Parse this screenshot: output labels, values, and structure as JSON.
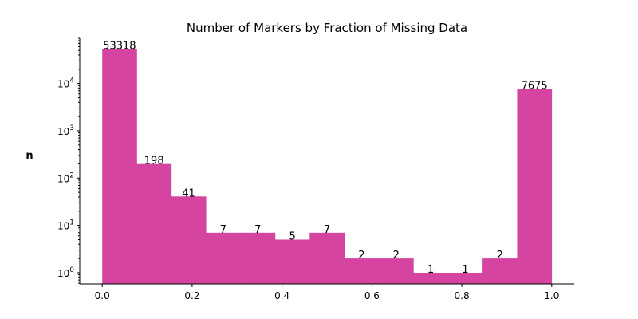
{
  "chart_data": {
    "type": "bar",
    "title": "Number of Markers by Fraction of Missing Data",
    "xlabel": "",
    "ylabel": "n",
    "yscale": "log",
    "xlim": [
      -0.05,
      1.05
    ],
    "ylim": [
      0.58,
      90000
    ],
    "grid": false,
    "bar_color": "#d444a0",
    "bins": [
      {
        "x0": 0.0,
        "x1": 0.0769,
        "value": 53318,
        "label": "53318"
      },
      {
        "x0": 0.0769,
        "x1": 0.1538,
        "value": 198,
        "label": "198"
      },
      {
        "x0": 0.1538,
        "x1": 0.2308,
        "value": 41,
        "label": "41"
      },
      {
        "x0": 0.2308,
        "x1": 0.3077,
        "value": 7,
        "label": "7"
      },
      {
        "x0": 0.3077,
        "x1": 0.3846,
        "value": 7,
        "label": "7"
      },
      {
        "x0": 0.3846,
        "x1": 0.4615,
        "value": 5,
        "label": "5"
      },
      {
        "x0": 0.4615,
        "x1": 0.5385,
        "value": 7,
        "label": "7"
      },
      {
        "x0": 0.5385,
        "x1": 0.6154,
        "value": 2,
        "label": "2"
      },
      {
        "x0": 0.6154,
        "x1": 0.6923,
        "value": 2,
        "label": "2"
      },
      {
        "x0": 0.6923,
        "x1": 0.7692,
        "value": 1,
        "label": "1"
      },
      {
        "x0": 0.7692,
        "x1": 0.8462,
        "value": 1,
        "label": "1"
      },
      {
        "x0": 0.8462,
        "x1": 0.9231,
        "value": 2,
        "label": "2"
      },
      {
        "x0": 0.9231,
        "x1": 1.0,
        "value": 7675,
        "label": "7675"
      }
    ],
    "x_ticks": [
      {
        "value": 0.0,
        "label": "0.0"
      },
      {
        "value": 0.2,
        "label": "0.2"
      },
      {
        "value": 0.4,
        "label": "0.4"
      },
      {
        "value": 0.6,
        "label": "0.6"
      },
      {
        "value": 0.8,
        "label": "0.8"
      },
      {
        "value": 1.0,
        "label": "1.0"
      }
    ],
    "y_ticks": [
      {
        "value": 1,
        "base": "10",
        "exp": "0"
      },
      {
        "value": 10,
        "base": "10",
        "exp": "1"
      },
      {
        "value": 100,
        "base": "10",
        "exp": "2"
      },
      {
        "value": 1000,
        "base": "10",
        "exp": "3"
      },
      {
        "value": 10000,
        "base": "10",
        "exp": "4"
      }
    ]
  }
}
